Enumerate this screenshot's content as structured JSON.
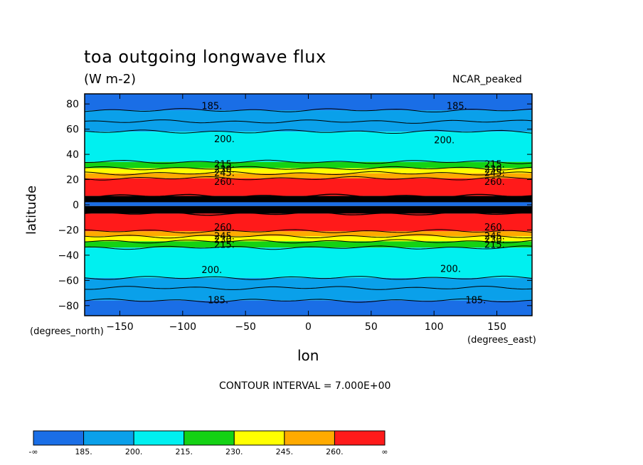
{
  "title": "toa outgoing longwave flux",
  "units": "(W m-2)",
  "model": "NCAR_peaked",
  "xlabel": "lon",
  "ylabel": "latitude",
  "xunits": "(degrees_east)",
  "yunits": "(degrees_north)",
  "interval_text": "CONTOUR INTERVAL = 7.000E+00",
  "chart_data": {
    "type": "heatmap",
    "title": "toa outgoing longwave flux",
    "xlabel": "lon",
    "ylabel": "latitude",
    "xlim": [
      -178,
      178
    ],
    "ylim": [
      -88,
      88
    ],
    "xticks": [
      -150,
      -100,
      -50,
      0,
      50,
      100,
      150
    ],
    "yticks": [
      80,
      60,
      40,
      20,
      0,
      -20,
      -40,
      -60,
      -80
    ],
    "contour_interval": 7.0,
    "colorbar": {
      "levels": [
        "-∞",
        "185.",
        "200.",
        "215.",
        "230.",
        "245.",
        "260.",
        "∞"
      ],
      "colors": [
        "#1a6ee6",
        "#0aa0ea",
        "#00f0f0",
        "#14d214",
        "#ffff00",
        "#ffaa00",
        "#ff1a1a"
      ]
    },
    "latitude_bands": [
      {
        "lat_min": 75,
        "lat_max": 88,
        "color": "#1a6ee6"
      },
      {
        "lat_min": 66,
        "lat_max": 75,
        "color": "#0aa0ea"
      },
      {
        "lat_min": 58,
        "lat_max": 66,
        "color": "#0aa0ea"
      },
      {
        "lat_min": 34,
        "lat_max": 58,
        "color": "#00f0f0"
      },
      {
        "lat_min": 29,
        "lat_max": 34,
        "color": "#14d214"
      },
      {
        "lat_min": 25,
        "lat_max": 29,
        "color": "#ffff00"
      },
      {
        "lat_min": 21,
        "lat_max": 25,
        "color": "#ffaa00"
      },
      {
        "lat_min": 7,
        "lat_max": 21,
        "color": "#ff1a1a"
      },
      {
        "lat_min": 2,
        "lat_max": 7,
        "color": "#000000"
      },
      {
        "lat_min": -1,
        "lat_max": 2,
        "color": "#1a6ee6"
      },
      {
        "lat_min": -7,
        "lat_max": -1,
        "color": "#000000"
      },
      {
        "lat_min": -21,
        "lat_max": -7,
        "color": "#ff1a1a"
      },
      {
        "lat_min": -25,
        "lat_max": -21,
        "color": "#ffaa00"
      },
      {
        "lat_min": -29,
        "lat_max": -25,
        "color": "#ffff00"
      },
      {
        "lat_min": -34,
        "lat_max": -29,
        "color": "#14d214"
      },
      {
        "lat_min": -58,
        "lat_max": -34,
        "color": "#00f0f0"
      },
      {
        "lat_min": -66,
        "lat_max": -58,
        "color": "#0aa0ea"
      },
      {
        "lat_min": -76,
        "lat_max": -66,
        "color": "#0aa0ea"
      },
      {
        "lat_min": -88,
        "lat_max": -76,
        "color": "#1a6ee6"
      }
    ],
    "contour_lines_lat": [
      75,
      66,
      58,
      34,
      29,
      25,
      21,
      7,
      -7,
      -21,
      -25,
      -29,
      -34,
      -58,
      -66,
      -76
    ],
    "contour_labels": [
      {
        "text": "185.",
        "lon": -85,
        "lat": 78
      },
      {
        "text": "185.",
        "lon": 110,
        "lat": 78
      },
      {
        "text": "200.",
        "lon": -75,
        "lat": 52
      },
      {
        "text": "200.",
        "lon": 100,
        "lat": 51
      },
      {
        "text": "215.",
        "lon": -75,
        "lat": 32
      },
      {
        "text": "215.",
        "lon": 140,
        "lat": 32
      },
      {
        "text": "230.",
        "lon": -75,
        "lat": 28
      },
      {
        "text": "230.",
        "lon": 140,
        "lat": 28
      },
      {
        "text": "245.",
        "lon": -75,
        "lat": 25
      },
      {
        "text": "245.",
        "lon": 140,
        "lat": 25
      },
      {
        "text": "260.",
        "lon": -75,
        "lat": 18
      },
      {
        "text": "260.",
        "lon": 140,
        "lat": 18
      },
      {
        "text": "260.",
        "lon": -75,
        "lat": -18
      },
      {
        "text": "260.",
        "lon": 140,
        "lat": -18
      },
      {
        "text": "245.",
        "lon": -75,
        "lat": -25
      },
      {
        "text": "245.",
        "lon": 140,
        "lat": -25
      },
      {
        "text": "230.",
        "lon": -75,
        "lat": -28
      },
      {
        "text": "230.",
        "lon": 140,
        "lat": -28
      },
      {
        "text": "215.",
        "lon": -75,
        "lat": -32
      },
      {
        "text": "215.",
        "lon": 140,
        "lat": -32
      },
      {
        "text": "200.",
        "lon": -85,
        "lat": -52
      },
      {
        "text": "200.",
        "lon": 105,
        "lat": -51
      },
      {
        "text": "185.",
        "lon": -80,
        "lat": -76
      },
      {
        "text": "185.",
        "lon": 125,
        "lat": -76
      }
    ]
  }
}
